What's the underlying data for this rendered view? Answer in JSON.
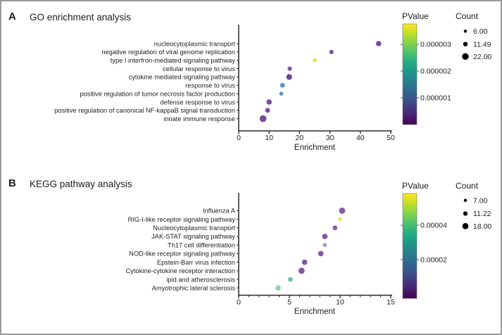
{
  "figure": {
    "background": "#ffffff",
    "border_color": "#97999c",
    "text_color": "#1d1d1f",
    "axis_color": "#2a2627"
  },
  "viridis_stops": [
    "#fde725",
    "#c2df23",
    "#86d549",
    "#52c569",
    "#2ab07f",
    "#1e9b8a",
    "#25858e",
    "#2d708e",
    "#38588c",
    "#433e85",
    "#482173",
    "#440154"
  ],
  "chart_data": [
    {
      "type": "scatter",
      "panel_letter": "A",
      "title": "GO enrichment analysis",
      "xlabel": "Enrichment",
      "xlim": [
        0,
        50
      ],
      "x_major_ticks": [
        0,
        10,
        20,
        30,
        40,
        50
      ],
      "x_minor_tick_step": null,
      "grid": false,
      "points": [
        {
          "label": "nucleocytoplasmic transport",
          "enrichment": 46,
          "color": "#7a4c9e",
          "radius_px": 3.8
        },
        {
          "label": "negative regulation of viral genome replication",
          "enrichment": 30.5,
          "color": "#7a4c9e",
          "radius_px": 3.0
        },
        {
          "label": "type I interfron-mediated signaling pathway",
          "enrichment": 25,
          "color": "#e9e151",
          "radius_px": 2.8
        },
        {
          "label": "cellular response to virus",
          "enrichment": 16.8,
          "color": "#7e52a2",
          "radius_px": 3.1
        },
        {
          "label": "cytokine mediated signaling pathway",
          "enrichment": 16.6,
          "color": "#71459a",
          "radius_px": 4.1
        },
        {
          "label": "response to virus",
          "enrichment": 14.4,
          "color": "#5f94c4",
          "radius_px": 3.4
        },
        {
          "label": "positive regulation of tumor necrosis factor production",
          "enrichment": 14,
          "color": "#5f94c4",
          "radius_px": 2.8
        },
        {
          "label": "defense response to virus",
          "enrichment": 10,
          "color": "#7a4c9e",
          "radius_px": 3.8
        },
        {
          "label": "positive regulation of canonical NF-kappaB signal transduction",
          "enrichment": 9.5,
          "color": "#7a4c9e",
          "radius_px": 3.4
        },
        {
          "label": "innate immune response",
          "enrichment": 8,
          "color": "#7a4c9e",
          "radius_px": 4.9
        }
      ],
      "pvalue_legend": {
        "title": "PValue",
        "ticks": [
          {
            "label": "0.000003",
            "frac_from_top": 0.203
          },
          {
            "label": "0.000002",
            "frac_from_top": 0.469
          },
          {
            "label": "0.000001",
            "frac_from_top": 0.734
          }
        ]
      },
      "count_legend": {
        "title": "Count",
        "entries": [
          {
            "label": "6.00",
            "radius_px": 2.2
          },
          {
            "label": "11.49",
            "radius_px": 3.2
          },
          {
            "label": "22.00",
            "radius_px": 4.7
          }
        ]
      }
    },
    {
      "type": "scatter",
      "panel_letter": "B",
      "title": "KEGG pathway analysis",
      "xlabel": "Enrichment",
      "xlim": [
        0,
        15
      ],
      "x_major_ticks": [
        0,
        5,
        10,
        15
      ],
      "x_minor_tick_step": 1,
      "grid": false,
      "points": [
        {
          "label": "Influenza A",
          "enrichment": 10.2,
          "color": "#8a5aa8",
          "radius_px": 4.4
        },
        {
          "label": "RIG-I-like receptor signaling pathway",
          "enrichment": 10.0,
          "color": "#ebe45e",
          "radius_px": 2.8
        },
        {
          "label": "Nucleocytoplasmic transport",
          "enrichment": 9.5,
          "color": "#8a5aa8",
          "radius_px": 3.4
        },
        {
          "label": "JAK-STAT signaling pathway",
          "enrichment": 8.5,
          "color": "#84549f",
          "radius_px": 3.8
        },
        {
          "label": "Th17 cell differentiation",
          "enrichment": 8.5,
          "color": "#a39bd3",
          "radius_px": 2.9
        },
        {
          "label": "NOD-like receptor signaling pathway",
          "enrichment": 8.1,
          "color": "#84549f",
          "radius_px": 3.8
        },
        {
          "label": "Epstein-Barr virus infection",
          "enrichment": 6.5,
          "color": "#84549f",
          "radius_px": 3.8
        },
        {
          "label": "Cytokine-cytokine receptor interaction",
          "enrichment": 6.2,
          "color": "#84549f",
          "radius_px": 4.4
        },
        {
          "label": "ipid and atherosclerosis",
          "enrichment": 5.1,
          "color": "#66c3a6",
          "radius_px": 3.4
        },
        {
          "label": "Amyotrophic lateral sclerosis",
          "enrichment": 3.9,
          "color": "#93d5a3",
          "radius_px": 3.8
        }
      ],
      "pvalue_legend": {
        "title": "PValue",
        "ticks": [
          {
            "label": "0.00004",
            "frac_from_top": 0.302
          },
          {
            "label": "0.00002",
            "frac_from_top": 0.631
          }
        ]
      },
      "count_legend": {
        "title": "Count",
        "entries": [
          {
            "label": "7.00",
            "radius_px": 2.2
          },
          {
            "label": "11.22",
            "radius_px": 3.1
          },
          {
            "label": "18.00",
            "radius_px": 4.4
          }
        ]
      }
    }
  ]
}
